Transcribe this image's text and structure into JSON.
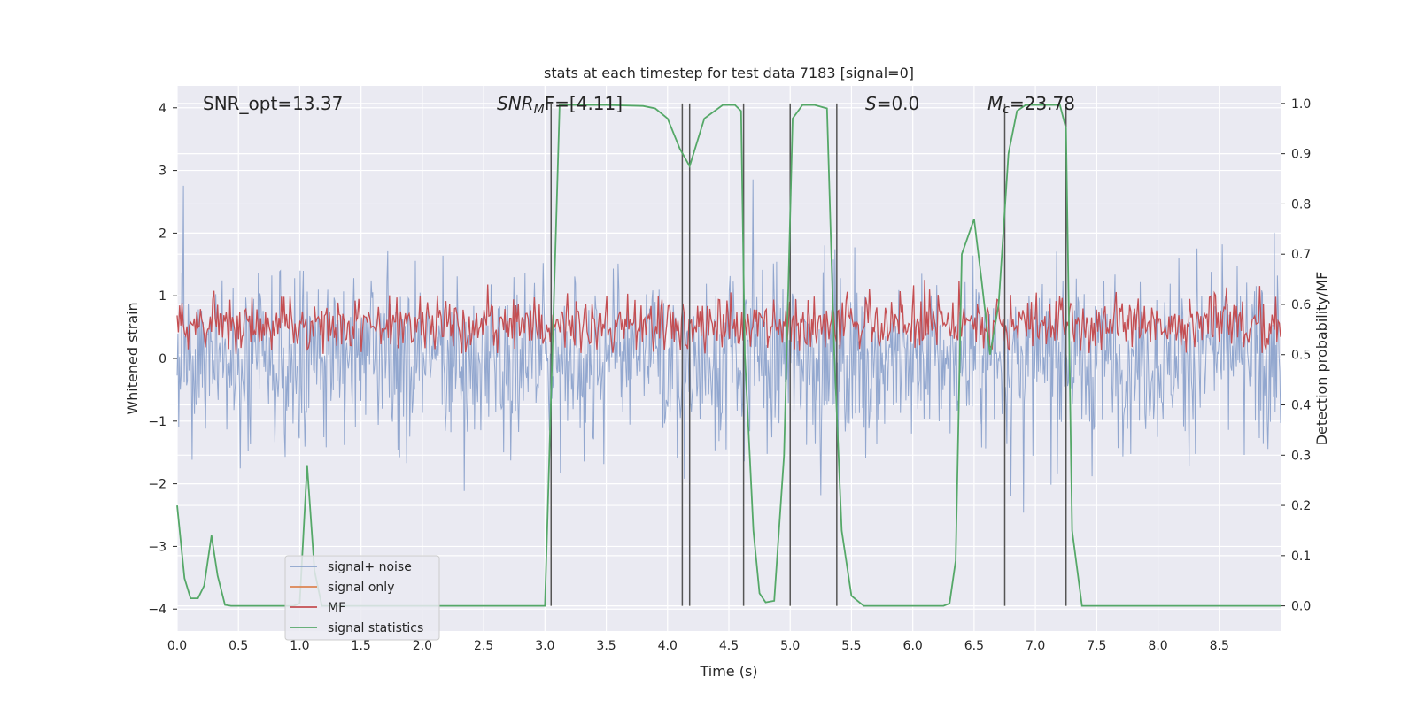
{
  "chart_data": {
    "type": "line",
    "title": "stats at each timestep for test data 7183 [signal=0]",
    "xlabel": "Time (s)",
    "ylabel_left": "Whitened strain",
    "ylabel_right": "Detection probability/MF",
    "xlim": [
      0.0,
      9.0
    ],
    "ylim_left": [
      -4.35,
      4.35
    ],
    "ylim_right": [
      -0.05,
      1.035
    ],
    "xticks": [
      "0.0",
      "0.5",
      "1.0",
      "1.5",
      "2.0",
      "2.5",
      "3.0",
      "3.5",
      "4.0",
      "4.5",
      "5.0",
      "5.5",
      "6.0",
      "6.5",
      "7.0",
      "7.5",
      "8.0",
      "8.5"
    ],
    "yticks_left": [
      "4",
      "3",
      "2",
      "1",
      "0",
      "−1",
      "−2",
      "−3",
      "−4"
    ],
    "yticks_right": [
      "1.0",
      "0.9",
      "0.8",
      "0.7",
      "0.6",
      "0.5",
      "0.4",
      "0.3",
      "0.2",
      "0.1",
      "0.0"
    ],
    "annotations": {
      "snr_opt": "SNR_opt=13.37",
      "snr_mf_label": "SNR",
      "snr_mf_sub": "M",
      "snr_mf_value": "F=[4.11]",
      "s_label": "S",
      "s_value": "=0.0",
      "mc_label": "M",
      "mc_sub": "c",
      "mc_value": "=23.78"
    },
    "colors": {
      "noise": "#8da3cc",
      "signal": "#dd8452",
      "mf": "#c44e52",
      "stat": "#55a868",
      "vline": "#555555",
      "background": "#eaeaf2",
      "grid": "#ffffff"
    },
    "series": [
      {
        "name": "signal+ noise",
        "axis": "left",
        "note": "whitened strain noise, |peak| up to ~4, dense band ±1.5"
      },
      {
        "name": "signal only",
        "axis": "left",
        "values": []
      },
      {
        "name": "MF",
        "axis": "right",
        "note": "matched-filter output, mostly between 0.5 and 0.65, peaks to 0.70"
      },
      {
        "name": "signal statistics",
        "axis": "right",
        "x": [
          0.0,
          0.06,
          0.11,
          0.17,
          0.22,
          0.28,
          0.33,
          0.39,
          0.44,
          0.5,
          0.9,
          0.95,
          1.0,
          1.06,
          1.12,
          1.18,
          1.3,
          2.0,
          3.0,
          3.06,
          3.12,
          3.5,
          3.8,
          3.9,
          4.0,
          4.1,
          4.18,
          4.3,
          4.45,
          4.55,
          4.6,
          4.63,
          4.7,
          4.75,
          4.8,
          4.87,
          4.95,
          5.02,
          5.1,
          5.2,
          5.3,
          5.36,
          5.42,
          5.5,
          5.6,
          6.0,
          6.25,
          6.3,
          6.35,
          6.4,
          6.5,
          6.56,
          6.63,
          6.7,
          6.78,
          6.85,
          6.92,
          7.0,
          7.2,
          7.25,
          7.3,
          7.38,
          8.0,
          9.0
        ],
        "values": [
          0.2,
          0.055,
          0.015,
          0.015,
          0.04,
          0.14,
          0.06,
          0.002,
          0.0,
          0.0,
          0.0,
          0.0,
          0.005,
          0.28,
          0.07,
          0.0,
          0.0,
          0.0,
          0.0,
          0.5,
          0.997,
          0.997,
          0.995,
          0.99,
          0.97,
          0.91,
          0.875,
          0.97,
          0.997,
          0.997,
          0.985,
          0.5,
          0.15,
          0.025,
          0.007,
          0.01,
          0.3,
          0.97,
          0.997,
          0.997,
          0.99,
          0.5,
          0.15,
          0.02,
          0.0,
          0.0,
          0.0,
          0.005,
          0.09,
          0.7,
          0.77,
          0.65,
          0.5,
          0.6,
          0.9,
          0.985,
          0.997,
          0.997,
          0.997,
          0.95,
          0.15,
          0.0,
          0.0,
          0.0
        ]
      }
    ],
    "vlines": [
      3.05,
      4.12,
      4.18,
      4.62,
      5.0,
      5.38,
      6.75,
      7.25
    ],
    "legend": {
      "position": "lower-left",
      "entries": [
        "signal+ noise",
        "signal only",
        "MF",
        "signal statistics"
      ]
    }
  }
}
